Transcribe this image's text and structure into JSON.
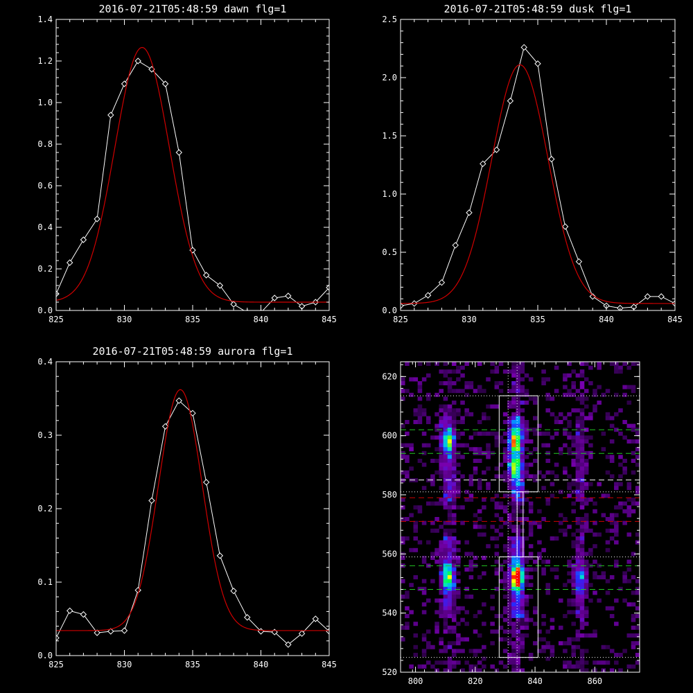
{
  "chart_data": [
    {
      "type": "line",
      "title": "2016-07-21T05:48:59 dawn flg=1",
      "xlim": [
        825,
        845
      ],
      "ylim": [
        0,
        1.4
      ],
      "xticks": [
        825,
        830,
        835,
        840,
        845
      ],
      "xtick_labels": [
        "825",
        "830",
        "835",
        "840",
        "845"
      ],
      "yticks": [
        0,
        0.2,
        0.4,
        0.6,
        0.8,
        1.0,
        1.2,
        1.4
      ],
      "ytick_labels": [
        "0.0",
        "0.2",
        "0.4",
        "0.6",
        "0.8",
        "1.0",
        "1.2",
        "1.4"
      ],
      "grid": false,
      "series": [
        {
          "kind": "data",
          "color": "#ffffff",
          "marker": "diamond",
          "x": [
            825,
            826,
            827,
            828,
            829,
            830,
            831,
            832,
            833,
            834,
            835,
            836,
            837,
            838,
            839,
            840,
            841,
            842,
            843,
            844,
            845
          ],
          "y": [
            0.08,
            0.23,
            0.34,
            0.44,
            0.94,
            1.09,
            1.2,
            1.16,
            1.09,
            0.76,
            0.29,
            0.17,
            0.12,
            0.03,
            -0.01,
            -0.01,
            0.06,
            0.07,
            0.02,
            0.04,
            0.11
          ]
        },
        {
          "kind": "fit",
          "color": "#d10000",
          "model": "gaussian",
          "amplitude": 1.225,
          "center": 831.3,
          "sigma": 2.0,
          "baseline": 0.04
        }
      ]
    },
    {
      "type": "line",
      "title": "2016-07-21T05:48:59 dusk flg=1",
      "xlim": [
        825,
        845
      ],
      "ylim": [
        0,
        2.5
      ],
      "xticks": [
        825,
        830,
        835,
        840,
        845
      ],
      "xtick_labels": [
        "825",
        "830",
        "835",
        "840",
        "845"
      ],
      "yticks": [
        0,
        0.5,
        1.0,
        1.5,
        2.0,
        2.5
      ],
      "ytick_labels": [
        "0.0",
        "0.5",
        "1.0",
        "1.5",
        "2.0",
        "2.5"
      ],
      "grid": false,
      "series": [
        {
          "kind": "data",
          "color": "#ffffff",
          "marker": "diamond",
          "x": [
            825,
            826,
            827,
            828,
            829,
            830,
            831,
            832,
            833,
            834,
            835,
            836,
            837,
            838,
            839,
            840,
            841,
            842,
            843,
            844,
            845
          ],
          "y": [
            0.04,
            0.06,
            0.13,
            0.24,
            0.56,
            0.84,
            1.26,
            1.38,
            1.8,
            2.26,
            2.12,
            1.3,
            0.72,
            0.42,
            0.12,
            0.04,
            0.02,
            0.03,
            0.12,
            0.12,
            0.06
          ]
        },
        {
          "kind": "fit",
          "color": "#d10000",
          "model": "gaussian",
          "amplitude": 2.05,
          "center": 833.7,
          "sigma": 2.05,
          "baseline": 0.06
        }
      ]
    },
    {
      "type": "line",
      "title": "2016-07-21T05:48:59 aurora flg=1",
      "xlim": [
        825,
        845
      ],
      "ylim": [
        0,
        0.4
      ],
      "xticks": [
        825,
        830,
        835,
        840,
        845
      ],
      "xtick_labels": [
        "825",
        "830",
        "835",
        "840",
        "845"
      ],
      "yticks": [
        0,
        0.1,
        0.2,
        0.3,
        0.4
      ],
      "ytick_labels": [
        "0.0",
        "0.1",
        "0.2",
        "0.3",
        "0.4"
      ],
      "grid": false,
      "series": [
        {
          "kind": "data",
          "color": "#ffffff",
          "marker": "diamond",
          "x": [
            825,
            826,
            827,
            828,
            829,
            830,
            831,
            832,
            833,
            834,
            835,
            836,
            837,
            838,
            839,
            840,
            841,
            842,
            843,
            844,
            845
          ],
          "y": [
            0.024,
            0.061,
            0.056,
            0.031,
            0.033,
            0.034,
            0.089,
            0.211,
            0.312,
            0.347,
            0.33,
            0.236,
            0.136,
            0.088,
            0.052,
            0.033,
            0.032,
            0.015,
            0.03,
            0.05,
            0.033
          ]
        },
        {
          "kind": "fit",
          "color": "#d10000",
          "model": "gaussian",
          "amplitude": 0.328,
          "center": 834.1,
          "sigma": 1.6,
          "baseline": 0.034
        }
      ]
    },
    {
      "type": "heatmap",
      "title": "",
      "xlim": [
        795,
        875
      ],
      "ylim": [
        520,
        625
      ],
      "xticks": [
        800,
        820,
        840,
        860
      ],
      "xtick_labels": [
        "800",
        "820",
        "840",
        "860"
      ],
      "yticks": [
        520,
        540,
        560,
        580,
        600,
        620
      ],
      "ytick_labels": [
        "520",
        "540",
        "560",
        "580",
        "600",
        "620"
      ],
      "colormap": "rainbow",
      "emission_columns_x": [
        811,
        834,
        855
      ],
      "bright_spots": [
        {
          "x": 811,
          "y": 598,
          "intensity": 0.5
        },
        {
          "x": 811,
          "y": 552,
          "intensity": 0.55
        },
        {
          "x": 833,
          "y": 598,
          "intensity": 0.62
        },
        {
          "x": 833,
          "y": 589,
          "intensity": 0.5
        },
        {
          "x": 834,
          "y": 552,
          "intensity": 0.95
        },
        {
          "x": 855,
          "y": 552,
          "intensity": 0.3
        }
      ],
      "boxes": [
        {
          "x0": 828,
          "x1": 841,
          "y0": 581,
          "y1": 613.5,
          "color": "#ffffff"
        },
        {
          "x0": 828,
          "x1": 841,
          "y0": 525,
          "y1": 559,
          "color": "#ffffff"
        },
        {
          "x0": 834,
          "x1": 836,
          "y0": 559,
          "y1": 581,
          "color": "#ffffff"
        }
      ],
      "hlines": [
        {
          "y": 613.5,
          "color": "#ffffff",
          "style": "dotted"
        },
        {
          "y": 602,
          "color": "#22c822",
          "style": "dashed"
        },
        {
          "y": 594,
          "color": "#22c822",
          "style": "dashed"
        },
        {
          "y": 585,
          "color": "#ffffff",
          "style": "dashed"
        },
        {
          "y": 581,
          "color": "#ffffff",
          "style": "dotted"
        },
        {
          "y": 579,
          "color": "#d10000",
          "style": "dashed"
        },
        {
          "y": 571,
          "color": "#d10000",
          "style": "dashed"
        },
        {
          "y": 559,
          "color": "#ffffff",
          "style": "dotted"
        },
        {
          "y": 556,
          "color": "#22c822",
          "style": "dashed"
        },
        {
          "y": 548,
          "color": "#22c822",
          "style": "dashed"
        },
        {
          "y": 525,
          "color": "#ffffff",
          "style": "dotted"
        }
      ],
      "vlines": [
        {
          "x": 831,
          "color": "#ffffff",
          "style": "dotted"
        },
        {
          "x": 834,
          "color": "#ffffff",
          "style": "dotted"
        }
      ]
    }
  ]
}
